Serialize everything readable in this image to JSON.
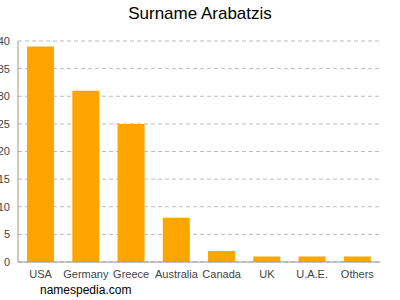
{
  "chart_data": {
    "type": "bar",
    "title": "Surname Arabatzis",
    "categories": [
      "USA",
      "Germany",
      "Greece",
      "Australia",
      "Canada",
      "UK",
      "U.A.E.",
      "Others"
    ],
    "values": [
      39,
      31,
      25,
      8,
      2,
      1,
      1,
      1
    ],
    "color": "#ffa500",
    "ylim": [
      0,
      40
    ],
    "yticks": [
      0,
      5,
      10,
      15,
      20,
      25,
      30,
      35,
      40
    ],
    "grid": true,
    "annotations": [
      "namespedia.com"
    ]
  }
}
